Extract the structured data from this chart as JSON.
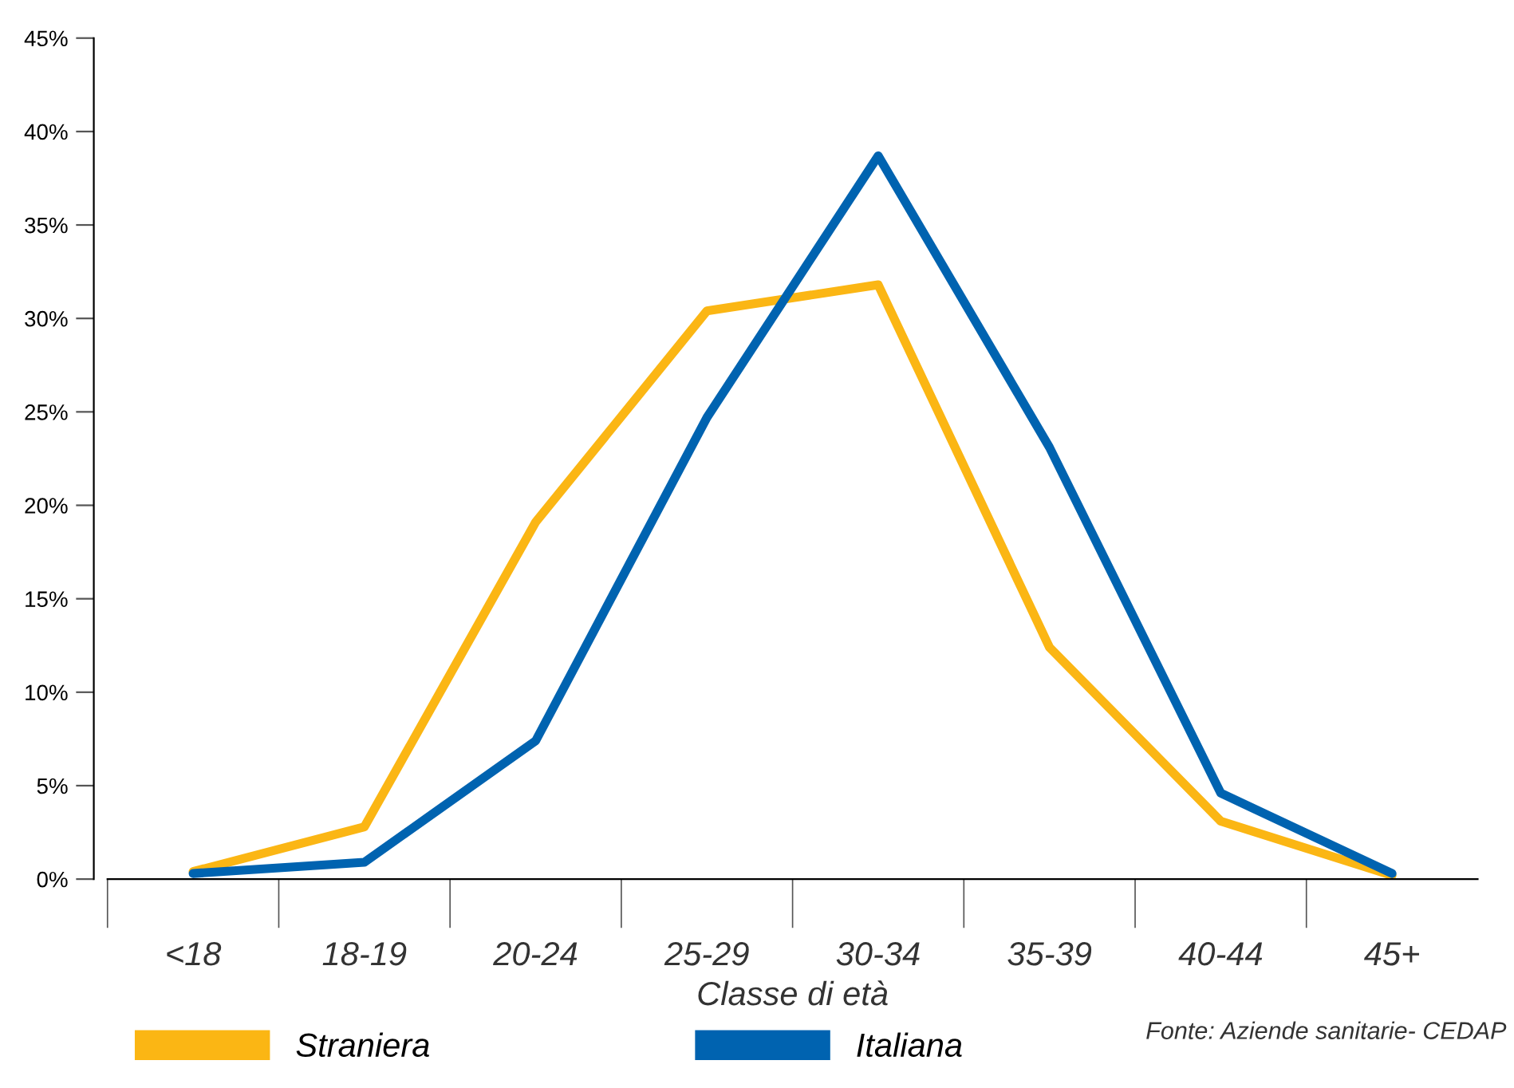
{
  "chart_data": {
    "type": "line",
    "xlabel": "Classe di età",
    "categories": [
      "<18",
      "18-19",
      "20-24",
      "25-29",
      "30-34",
      "35-39",
      "40-44",
      "45+"
    ],
    "series": [
      {
        "name": "Straniera",
        "color": "#fbb614",
        "values": [
          0.4,
          2.8,
          19.1,
          30.4,
          31.8,
          12.4,
          3.1,
          0.2
        ]
      },
      {
        "name": "Italiana",
        "color": "#0063b0",
        "values": [
          0.3,
          0.9,
          7.4,
          24.7,
          38.7,
          23.1,
          4.6,
          0.3
        ]
      }
    ],
    "ylim": [
      0,
      45
    ],
    "yticks": [
      {
        "value": 0,
        "label": "0%"
      },
      {
        "value": 5,
        "label": "5%"
      },
      {
        "value": 10,
        "label": "10%"
      },
      {
        "value": 15,
        "label": "15%"
      },
      {
        "value": 20,
        "label": "20%"
      },
      {
        "value": 25,
        "label": "25%"
      },
      {
        "value": 30,
        "label": "30%"
      },
      {
        "value": 35,
        "label": "35%"
      },
      {
        "value": 40,
        "label": "40%"
      },
      {
        "value": 45,
        "label": "45%"
      }
    ],
    "grid": false,
    "legend": "bottom left",
    "marker": "none",
    "line_style": "solid",
    "annotations": [
      "Fonte: Aziende sanitarie- CEDAP"
    ]
  }
}
